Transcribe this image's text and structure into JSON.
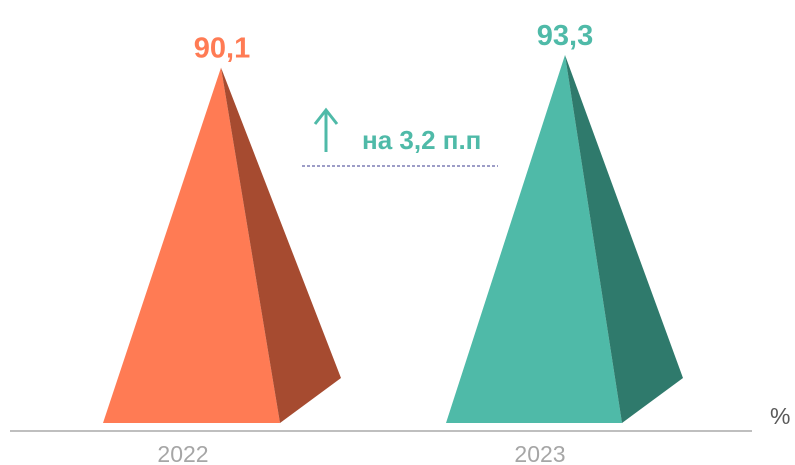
{
  "chart_data": {
    "type": "bar",
    "mark_shape": "pyramid",
    "categories": [
      "2022",
      "2023"
    ],
    "values": [
      90.1,
      93.3
    ],
    "value_labels": [
      "90,1",
      "93,3"
    ],
    "ylabel": "%",
    "ylim": [
      0,
      100
    ],
    "grid": false,
    "legend": "none",
    "colors": [
      "#ff7b54",
      "#4fbaa8"
    ],
    "side_colors": [
      "#a64b30",
      "#2f7a6c"
    ],
    "annotation": {
      "arrow": "↑",
      "text": "на 3,2 п.п",
      "color": "#4fbaa8"
    }
  }
}
